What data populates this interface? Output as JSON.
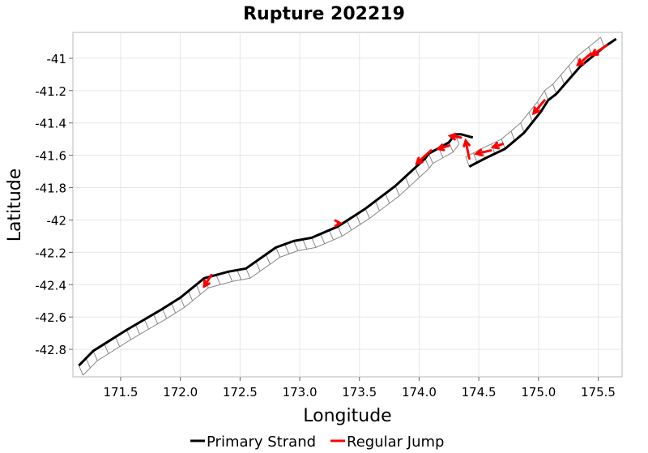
{
  "chart_data": {
    "type": "line",
    "title": "Rupture 202219",
    "xlabel": "Longitude",
    "ylabel": "Latitude",
    "xlim": [
      171.1,
      175.7
    ],
    "ylim": [
      -42.97,
      -40.84
    ],
    "xticks": [
      171.5,
      172.0,
      172.5,
      173.0,
      173.5,
      174.0,
      174.5,
      175.0,
      175.5
    ],
    "xtick_labels": [
      "171.5",
      "172.0",
      "172.5",
      "173.0",
      "173.5",
      "174.0",
      "174.5",
      "175.0",
      "175.5"
    ],
    "yticks": [
      -41.0,
      -41.2,
      -41.4,
      -41.6,
      -41.8,
      -42.0,
      -42.2,
      -42.4,
      -42.6,
      -42.8
    ],
    "ytick_labels": [
      "-41",
      "-41.2",
      "-41.4",
      "-41.6",
      "-41.8",
      "-42",
      "-42.2",
      "-42.4",
      "-42.6",
      "-42.8"
    ],
    "grid": true,
    "legend_position": "bottom",
    "colors": {
      "primary_strand": "#000000",
      "regular_jump": "#ff0000",
      "section_outline": "#888888",
      "grid": "#e6e6e6"
    },
    "series": [
      {
        "name": "Primary Strand",
        "color": "#000000",
        "points": [
          [
            171.15,
            -42.9
          ],
          [
            171.27,
            -42.81
          ],
          [
            171.55,
            -42.68
          ],
          [
            171.85,
            -42.55
          ],
          [
            172.0,
            -42.48
          ],
          [
            172.2,
            -42.36
          ],
          [
            172.4,
            -42.32
          ],
          [
            172.55,
            -42.3
          ],
          [
            172.8,
            -42.17
          ],
          [
            172.95,
            -42.13
          ],
          [
            173.1,
            -42.11
          ],
          [
            173.32,
            -42.04
          ],
          [
            173.55,
            -41.93
          ],
          [
            173.8,
            -41.79
          ],
          [
            174.05,
            -41.62
          ],
          [
            174.08,
            -41.59
          ],
          [
            174.25,
            -41.52
          ],
          [
            174.3,
            -41.47
          ],
          [
            174.35,
            -41.47
          ],
          [
            174.45,
            -41.49
          ]
        ]
      },
      {
        "name": "Primary Strand",
        "color": "#000000",
        "points": [
          [
            174.42,
            -41.67
          ],
          [
            174.55,
            -41.62
          ],
          [
            174.72,
            -41.56
          ],
          [
            174.88,
            -41.46
          ],
          [
            175.02,
            -41.33
          ],
          [
            175.08,
            -41.26
          ],
          [
            175.15,
            -41.22
          ],
          [
            175.35,
            -41.05
          ],
          [
            175.45,
            -40.99
          ],
          [
            175.55,
            -40.93
          ],
          [
            175.65,
            -40.88
          ]
        ]
      }
    ],
    "jumps": [
      {
        "name": "Regular Jump",
        "from": [
          172.26,
          -42.34
        ],
        "to": [
          172.2,
          -42.41
        ]
      },
      {
        "name": "Regular Jump",
        "from": [
          173.32,
          -42.02
        ],
        "to": [
          173.34,
          -42.02
        ]
      },
      {
        "name": "Regular Jump",
        "from": [
          174.1,
          -41.57
        ],
        "to": [
          173.98,
          -41.65
        ]
      },
      {
        "name": "Regular Jump",
        "from": [
          174.25,
          -41.54
        ],
        "to": [
          174.16,
          -41.56
        ]
      },
      {
        "name": "Regular Jump",
        "from": [
          174.35,
          -41.49
        ],
        "to": [
          174.26,
          -41.48
        ]
      },
      {
        "name": "Regular Jump",
        "from": [
          174.42,
          -41.62
        ],
        "to": [
          174.39,
          -41.51
        ]
      },
      {
        "name": "Regular Jump",
        "from": [
          174.6,
          -41.57
        ],
        "to": [
          174.48,
          -41.59
        ]
      },
      {
        "name": "Regular Jump",
        "from": [
          174.7,
          -41.53
        ],
        "to": [
          174.62,
          -41.55
        ]
      },
      {
        "name": "Regular Jump",
        "from": [
          175.05,
          -41.26
        ],
        "to": [
          174.96,
          -41.34
        ]
      },
      {
        "name": "Regular Jump",
        "from": [
          175.44,
          -40.97
        ],
        "to": [
          175.33,
          -41.04
        ]
      },
      {
        "name": "Regular Jump",
        "from": [
          175.57,
          -40.92
        ],
        "to": [
          175.45,
          -40.98
        ]
      }
    ],
    "section_traces": [
      {
        "offset": [
          0.035,
          -0.06
        ],
        "points": [
          [
            171.15,
            -42.9
          ],
          [
            171.27,
            -42.81
          ],
          [
            171.55,
            -42.68
          ],
          [
            171.85,
            -42.55
          ],
          [
            172.0,
            -42.48
          ],
          [
            172.2,
            -42.36
          ],
          [
            172.4,
            -42.32
          ],
          [
            172.55,
            -42.3
          ],
          [
            172.8,
            -42.17
          ],
          [
            172.95,
            -42.13
          ],
          [
            173.1,
            -42.11
          ],
          [
            173.32,
            -42.04
          ],
          [
            173.55,
            -41.93
          ],
          [
            173.8,
            -41.79
          ],
          [
            174.05,
            -41.62
          ],
          [
            174.08,
            -41.59
          ],
          [
            174.25,
            -41.52
          ],
          [
            174.3,
            -41.47
          ]
        ]
      },
      {
        "offset": [
          -0.03,
          0.06
        ],
        "points": [
          [
            174.42,
            -41.67
          ],
          [
            174.55,
            -41.62
          ],
          [
            174.72,
            -41.56
          ],
          [
            174.88,
            -41.46
          ],
          [
            175.02,
            -41.33
          ],
          [
            175.08,
            -41.26
          ],
          [
            175.15,
            -41.22
          ],
          [
            175.35,
            -41.05
          ],
          [
            175.45,
            -40.99
          ],
          [
            175.55,
            -40.93
          ]
        ]
      }
    ]
  },
  "legend": {
    "primary_label": "Primary Strand",
    "jump_label": "Regular Jump"
  }
}
